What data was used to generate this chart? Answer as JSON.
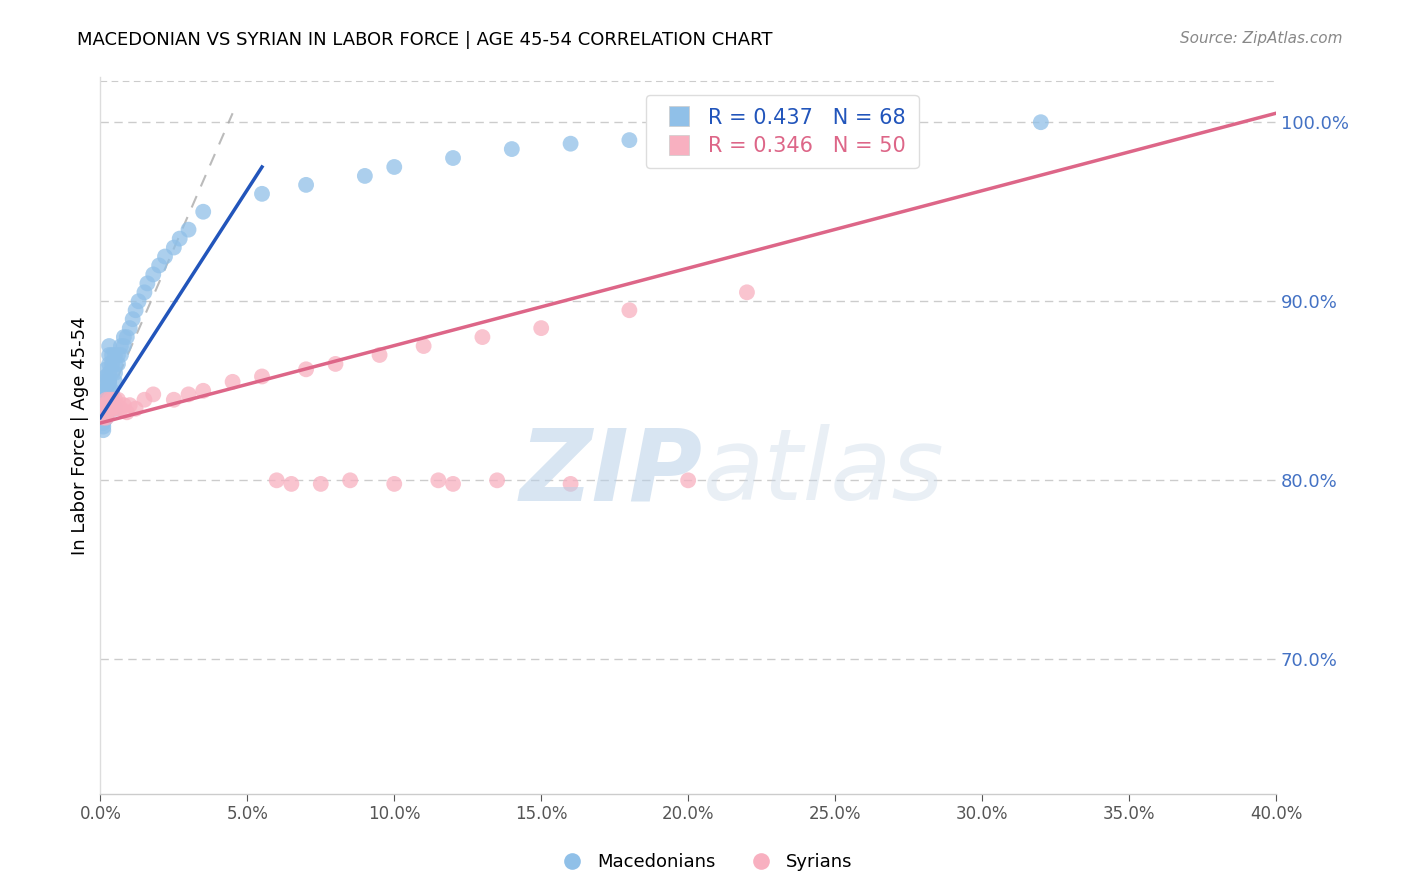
{
  "title": "MACEDONIAN VS SYRIAN IN LABOR FORCE | AGE 45-54 CORRELATION CHART",
  "source": "Source: ZipAtlas.com",
  "ylabel": "In Labor Force | Age 45-54",
  "xlim": [
    0.0,
    0.4
  ],
  "ylim": [
    0.625,
    1.025
  ],
  "blue_color": "#90c0e8",
  "pink_color": "#f8b0c0",
  "blue_line_color": "#2255bb",
  "pink_line_color": "#dd6688",
  "right_yticks": [
    0.7,
    0.8,
    0.9,
    1.0
  ],
  "legend_blue_label": "R = 0.437   N = 68",
  "legend_pink_label": "R = 0.346   N = 50",
  "blue_scatter_x": [
    0.001,
    0.001,
    0.001,
    0.001,
    0.001,
    0.001,
    0.001,
    0.001,
    0.001,
    0.001,
    0.001,
    0.002,
    0.002,
    0.002,
    0.002,
    0.002,
    0.002,
    0.002,
    0.003,
    0.003,
    0.003,
    0.003,
    0.003,
    0.003,
    0.003,
    0.003,
    0.003,
    0.004,
    0.004,
    0.004,
    0.004,
    0.004,
    0.005,
    0.005,
    0.005,
    0.005,
    0.005,
    0.006,
    0.006,
    0.007,
    0.007,
    0.008,
    0.008,
    0.009,
    0.01,
    0.011,
    0.012,
    0.013,
    0.015,
    0.016,
    0.018,
    0.02,
    0.022,
    0.025,
    0.027,
    0.03,
    0.035,
    0.055,
    0.07,
    0.09,
    0.1,
    0.12,
    0.14,
    0.16,
    0.18,
    0.2,
    0.25,
    0.32
  ],
  "blue_scatter_y": [
    0.84,
    0.845,
    0.85,
    0.855,
    0.838,
    0.832,
    0.828,
    0.83,
    0.836,
    0.842,
    0.848,
    0.85,
    0.855,
    0.858,
    0.862,
    0.835,
    0.84,
    0.845,
    0.855,
    0.86,
    0.865,
    0.87,
    0.875,
    0.84,
    0.845,
    0.85,
    0.855,
    0.86,
    0.865,
    0.87,
    0.845,
    0.85,
    0.855,
    0.86,
    0.865,
    0.87,
    0.84,
    0.865,
    0.87,
    0.87,
    0.875,
    0.875,
    0.88,
    0.88,
    0.885,
    0.89,
    0.895,
    0.9,
    0.905,
    0.91,
    0.915,
    0.92,
    0.925,
    0.93,
    0.935,
    0.94,
    0.95,
    0.96,
    0.965,
    0.97,
    0.975,
    0.98,
    0.985,
    0.988,
    0.99,
    0.992,
    0.996,
    1.0
  ],
  "pink_scatter_x": [
    0.001,
    0.001,
    0.001,
    0.001,
    0.002,
    0.002,
    0.002,
    0.002,
    0.002,
    0.003,
    0.003,
    0.003,
    0.003,
    0.004,
    0.004,
    0.004,
    0.005,
    0.005,
    0.006,
    0.006,
    0.007,
    0.008,
    0.009,
    0.01,
    0.012,
    0.015,
    0.018,
    0.025,
    0.03,
    0.035,
    0.045,
    0.055,
    0.07,
    0.08,
    0.095,
    0.11,
    0.13,
    0.15,
    0.18,
    0.22,
    0.06,
    0.065,
    0.075,
    0.085,
    0.1,
    0.115,
    0.12,
    0.135,
    0.16,
    0.2
  ],
  "pink_scatter_y": [
    0.84,
    0.835,
    0.838,
    0.842,
    0.845,
    0.838,
    0.842,
    0.835,
    0.84,
    0.845,
    0.842,
    0.838,
    0.84,
    0.845,
    0.842,
    0.84,
    0.845,
    0.842,
    0.84,
    0.845,
    0.84,
    0.842,
    0.838,
    0.842,
    0.84,
    0.845,
    0.848,
    0.845,
    0.848,
    0.85,
    0.855,
    0.858,
    0.862,
    0.865,
    0.87,
    0.875,
    0.88,
    0.885,
    0.895,
    0.905,
    0.8,
    0.798,
    0.798,
    0.8,
    0.798,
    0.8,
    0.798,
    0.8,
    0.798,
    0.8
  ],
  "blue_line_x": [
    0.0,
    0.055
  ],
  "blue_line_y": [
    0.835,
    0.975
  ],
  "pink_line_x": [
    0.0,
    0.4
  ],
  "pink_line_y": [
    0.832,
    1.005
  ],
  "dash_line_x": [
    0.0,
    0.045
  ],
  "dash_line_y": [
    0.835,
    1.005
  ]
}
